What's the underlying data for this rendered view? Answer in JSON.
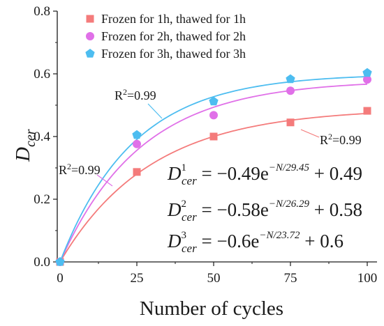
{
  "chart_data": {
    "type": "scatter",
    "xlabel": "Number of cycles",
    "ylabel": {
      "main": "D",
      "sub": "cer"
    },
    "xlim": [
      0,
      100
    ],
    "ylim": [
      0,
      0.8
    ],
    "xticks": [
      "0",
      "25",
      "50",
      "75",
      "100"
    ],
    "yticks": [
      "0.0",
      "0.2",
      "0.4",
      "0.6",
      "0.8"
    ],
    "grid": false,
    "legend_position": "top-left",
    "series": [
      {
        "name": "Frozen for 1h, thawed for 1h",
        "marker": "square",
        "color": "#f47b7b",
        "x": [
          0,
          25,
          50,
          75,
          100
        ],
        "y": [
          0.0,
          0.287,
          0.4,
          0.445,
          0.482
        ],
        "fit": {
          "a": 0.49,
          "t": 29.45
        }
      },
      {
        "name": "Frozen for 2h, thawed for 2h",
        "marker": "circle",
        "color": "#e070e8",
        "x": [
          0,
          25,
          50,
          75,
          100
        ],
        "y": [
          0.0,
          0.376,
          0.468,
          0.546,
          0.582
        ],
        "fit": {
          "a": 0.58,
          "t": 26.29
        }
      },
      {
        "name": "Frozen for 3h, thawed for 3h",
        "marker": "pentagon",
        "color": "#4dbdf0",
        "x": [
          0,
          25,
          50,
          75,
          100
        ],
        "y": [
          0.0,
          0.405,
          0.512,
          0.583,
          0.603
        ],
        "fit": {
          "a": 0.6,
          "t": 23.72
        }
      }
    ],
    "annotations": [
      {
        "text": "R²=0.99",
        "base": "R",
        "sup": "2",
        "rest": "=0.99"
      },
      {
        "text": "R²=0.99",
        "base": "R",
        "sup": "2",
        "rest": "=0.99"
      },
      {
        "text": "R²=0.99",
        "base": "R",
        "sup": "2",
        "rest": "=0.99"
      }
    ],
    "equations": [
      {
        "lhs": "D",
        "sup": "1",
        "sub": "cer",
        "rhs_a": " = −0.49e",
        "exp": "−N/29.45",
        "rhs_b": " + 0.49"
      },
      {
        "lhs": "D",
        "sup": "2",
        "sub": "cer",
        "rhs_a": " = −0.58e",
        "exp": "−N/26.29",
        "rhs_b": " + 0.58"
      },
      {
        "lhs": "D",
        "sup": "3",
        "sub": "cer",
        "rhs_a": " = −0.6e",
        "exp": "−N/23.72",
        "rhs_b": " + 0.6"
      }
    ]
  }
}
